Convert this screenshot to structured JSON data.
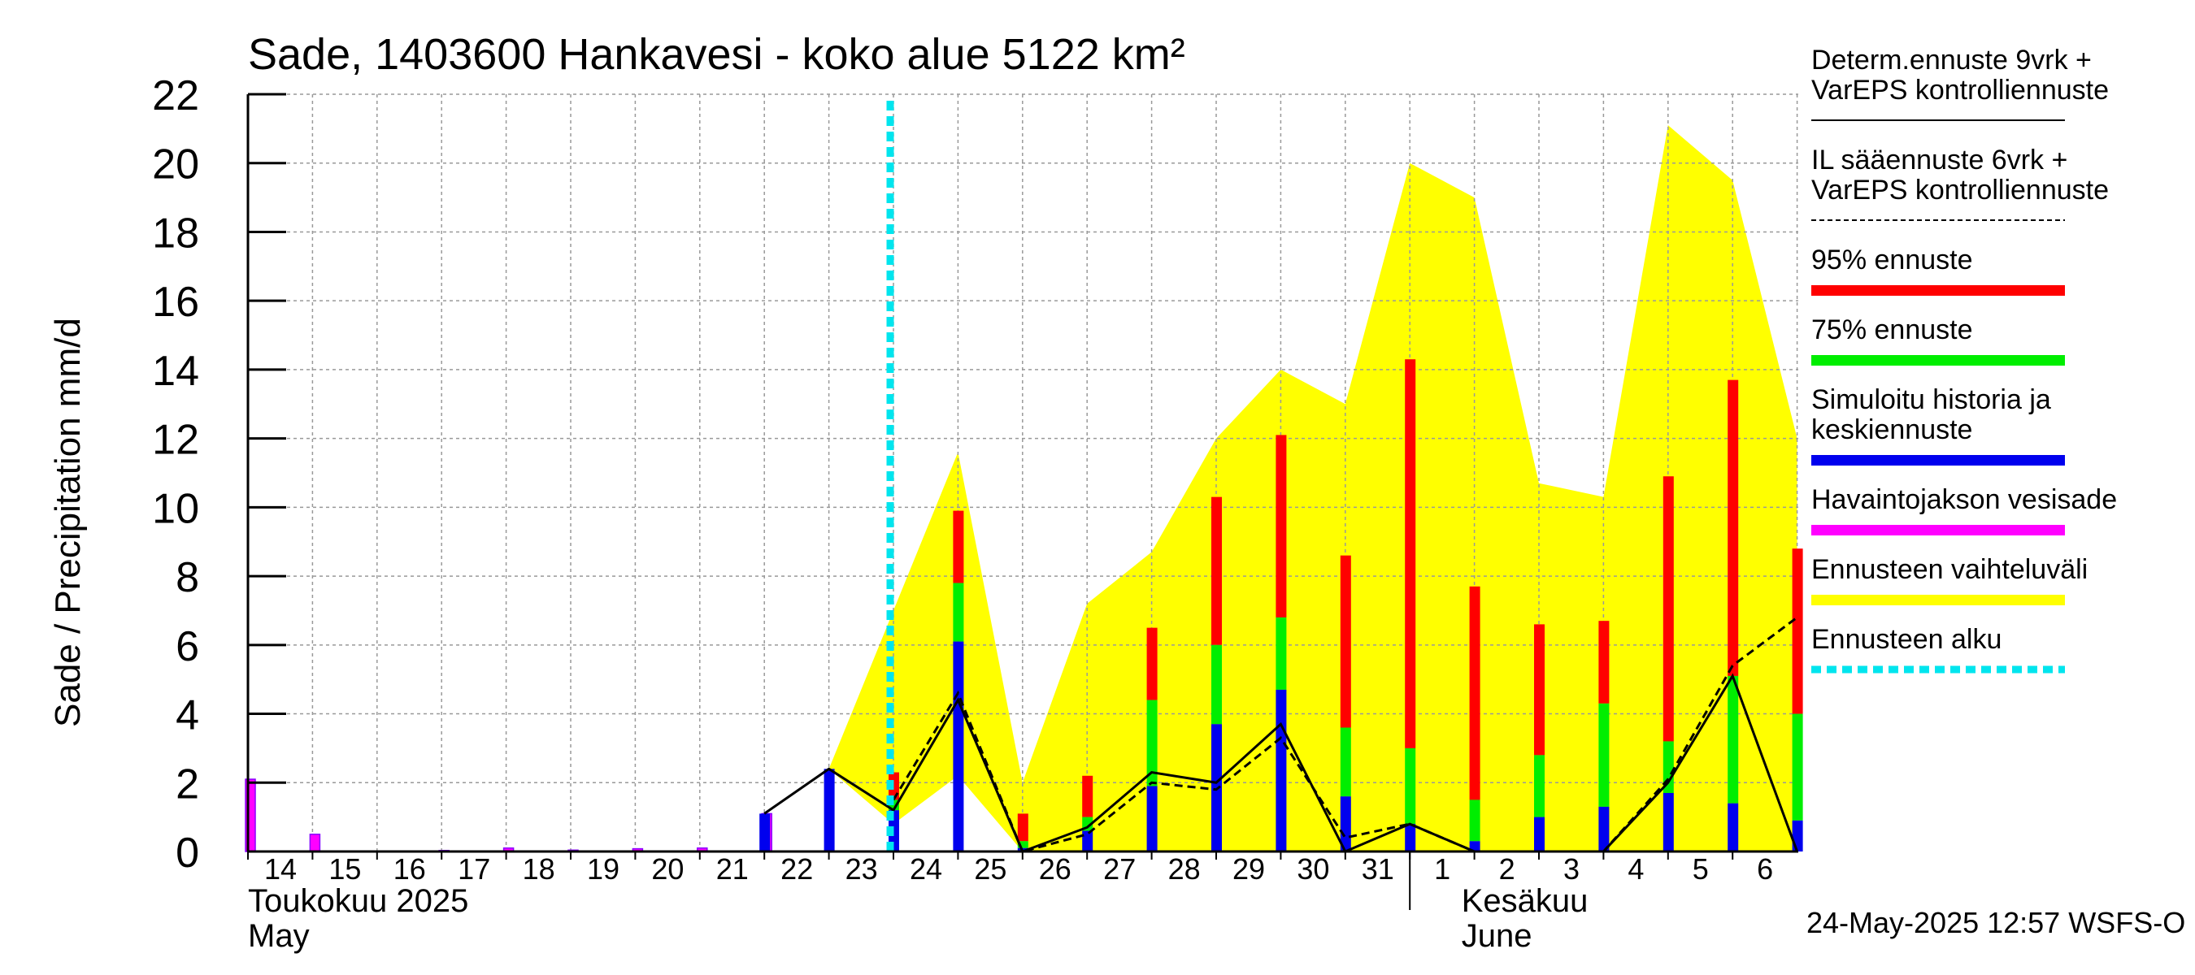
{
  "chart_data": {
    "type": "bar",
    "title": "Sade, 1403600 Hankavesi - koko alue 5122 km²",
    "ylabel": "Sade / Precipitation   mm/d",
    "ylim": [
      0,
      22
    ],
    "yticks": [
      "0",
      "2",
      "4",
      "6",
      "8",
      "10",
      "12",
      "14",
      "16",
      "18",
      "20",
      "22"
    ],
    "day_labels": [
      "14",
      "15",
      "16",
      "17",
      "18",
      "19",
      "20",
      "21",
      "22",
      "23",
      "24",
      "25",
      "26",
      "27",
      "28",
      "29",
      "30",
      "31",
      "1",
      "2",
      "3",
      "4",
      "5",
      "6"
    ],
    "month_labels": [
      {
        "fi": "Toukokuu  2025",
        "en": "May",
        "day_index": 0
      },
      {
        "fi": "Kesäkuu",
        "en": "June",
        "day_index": 18.8
      }
    ],
    "forecast_start_index": 10,
    "observed": [
      {
        "i": 0,
        "v": 2.1
      },
      {
        "i": 1,
        "v": 0.5
      },
      {
        "i": 3,
        "v": 0.03
      },
      {
        "i": 4,
        "v": 0.1
      },
      {
        "i": 5,
        "v": 0.04
      },
      {
        "i": 6,
        "v": 0.08
      },
      {
        "i": 7,
        "v": 0.1
      },
      {
        "i": 8,
        "v": 1.1
      }
    ],
    "simulated_history": [
      {
        "i": 8,
        "v": 1.1
      },
      {
        "i": 9,
        "v": 2.4
      }
    ],
    "forecast_bars": [
      {
        "i": 10,
        "mean": 1.2,
        "p75": 1.5,
        "p95": 2.3
      },
      {
        "i": 11,
        "mean": 6.1,
        "p75": 7.8,
        "p95": 9.9
      },
      {
        "i": 12,
        "mean": 0.1,
        "p75": 0.3,
        "p95": 1.1
      },
      {
        "i": 13,
        "mean": 0.6,
        "p75": 1.0,
        "p95": 2.2
      },
      {
        "i": 14,
        "mean": 1.9,
        "p75": 4.4,
        "p95": 6.5
      },
      {
        "i": 15,
        "mean": 3.7,
        "p75": 6.0,
        "p95": 10.3
      },
      {
        "i": 16,
        "mean": 4.7,
        "p75": 6.8,
        "p95": 12.1
      },
      {
        "i": 17,
        "mean": 1.6,
        "p75": 3.6,
        "p95": 8.6
      },
      {
        "i": 18,
        "mean": 0.8,
        "p75": 3.0,
        "p95": 14.3
      },
      {
        "i": 19,
        "mean": 0.3,
        "p75": 1.5,
        "p95": 7.7
      },
      {
        "i": 20,
        "mean": 1.0,
        "p75": 2.8,
        "p95": 6.6
      },
      {
        "i": 21,
        "mean": 1.3,
        "p75": 4.3,
        "p95": 6.7
      },
      {
        "i": 22,
        "mean": 1.7,
        "p75": 3.2,
        "p95": 10.9
      },
      {
        "i": 23,
        "mean": 1.4,
        "p75": 5.1,
        "p95": 13.7
      },
      {
        "i": 24,
        "mean": 0.9,
        "p75": 4.0,
        "p95": 8.8
      }
    ],
    "range_band": {
      "upper": [
        [
          9,
          2.4
        ],
        [
          11,
          11.6
        ],
        [
          12,
          2.0
        ],
        [
          13,
          7.2
        ],
        [
          14,
          8.7
        ],
        [
          15,
          12.0
        ],
        [
          16,
          14.0
        ],
        [
          17,
          13.0
        ],
        [
          18,
          20.0
        ],
        [
          19,
          19.0
        ],
        [
          20,
          10.7
        ],
        [
          21,
          10.3
        ],
        [
          22,
          21.1
        ],
        [
          23,
          19.5
        ],
        [
          24,
          12.0
        ]
      ],
      "lower": [
        [
          24,
          0
        ],
        [
          12,
          0
        ],
        [
          11,
          2.2
        ],
        [
          10,
          0.8
        ],
        [
          9,
          2.4
        ]
      ]
    },
    "deterministic_line": [
      [
        8,
        1.1
      ],
      [
        9,
        2.4
      ],
      [
        10,
        1.2
      ],
      [
        11,
        4.4
      ],
      [
        12,
        0.0
      ],
      [
        13,
        0.7
      ],
      [
        14,
        2.3
      ],
      [
        15,
        2.0
      ],
      [
        16,
        3.7
      ],
      [
        17,
        0.0
      ],
      [
        18,
        0.8
      ],
      [
        19,
        0.0
      ],
      [
        20,
        0.0
      ],
      [
        21,
        0.0
      ],
      [
        22,
        2.0
      ],
      [
        23,
        5.1
      ],
      [
        24,
        0.0
      ]
    ],
    "il_line": [
      [
        10,
        1.5
      ],
      [
        11,
        4.6
      ],
      [
        12,
        0.0
      ],
      [
        13,
        0.5
      ],
      [
        14,
        2.0
      ],
      [
        15,
        1.8
      ],
      [
        16,
        3.3
      ],
      [
        17,
        0.4
      ],
      [
        18,
        0.8
      ],
      [
        19,
        0.0
      ],
      [
        20,
        0.0
      ],
      [
        21,
        0.0
      ],
      [
        22,
        2.1
      ],
      [
        23,
        5.4
      ],
      [
        24,
        6.8
      ]
    ],
    "legend": [
      {
        "label": "Determ.ennuste 9vrk +\nVarEPS kontrolliennuste",
        "style": "solid",
        "color": "#000000"
      },
      {
        "label": "IL sääennuste 6vrk  +\n  VarEPS kontrolliennuste",
        "style": "dashed",
        "color": "#000000"
      },
      {
        "label": "95% ennuste",
        "style": "bar",
        "color": "#ff0000"
      },
      {
        "label": "75% ennuste",
        "style": "bar",
        "color": "#00ee00"
      },
      {
        "label": "Simuloitu historia ja\nkeskiennuste",
        "style": "bar",
        "color": "#0000ee"
      },
      {
        "label": "Havaintojakson vesisade",
        "style": "bar",
        "color": "#ff00ff"
      },
      {
        "label": "Ennusteen vaihteluväli",
        "style": "bar",
        "color": "#ffff00"
      },
      {
        "label": "Ennusteen alku",
        "style": "dotted",
        "color": "#00e5ee"
      }
    ],
    "timestamp": "24-May-2025 12:57 WSFS-O",
    "colors": {
      "observed": "#ff00ff",
      "observed_edge": "#8800ff",
      "mean": "#0000ee",
      "p75": "#00ee00",
      "p95": "#ff0000",
      "band": "#ffff00",
      "forecast_start": "#00e5ee"
    }
  }
}
